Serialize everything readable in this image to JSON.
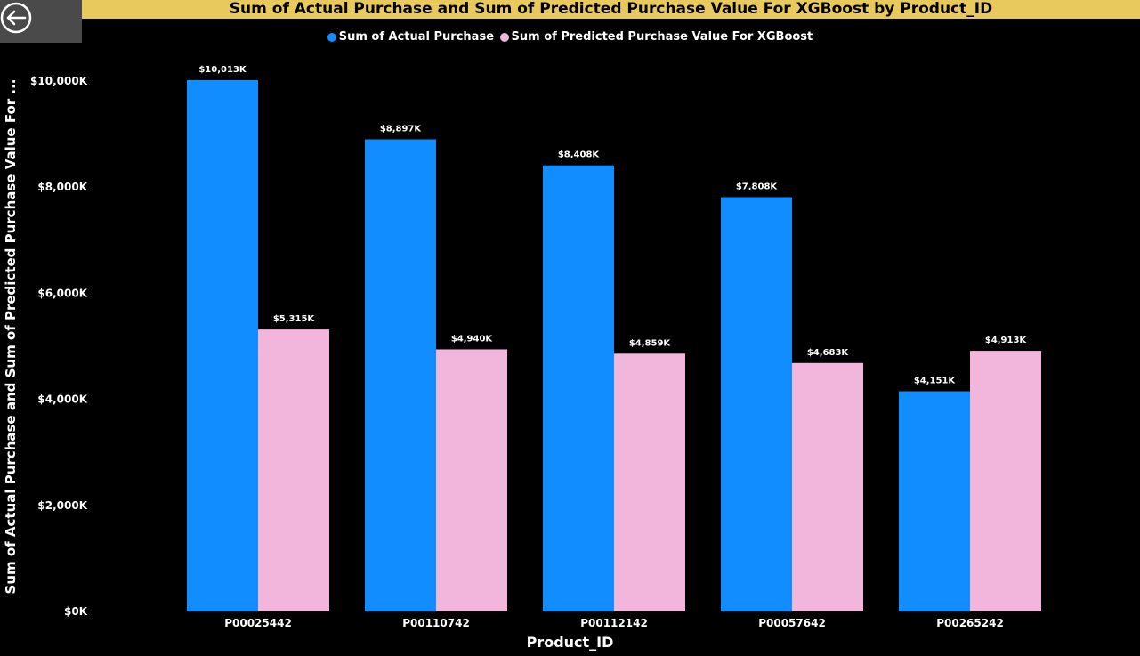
{
  "header": {
    "back_icon": "back-arrow-icon"
  },
  "chart_data": {
    "type": "bar",
    "title": "Sum of Actual Purchase and Sum of Predicted Purchase Value For XGBoost by Product_ID",
    "xlabel": "Product_ID",
    "ylabel": "Sum of Actual Purchase and Sum of Predicted Purchase Value For ...",
    "categories": [
      "P00025442",
      "P00110742",
      "P00112142",
      "P00057642",
      "P00265242"
    ],
    "series": [
      {
        "name": "Sum of Actual Purchase",
        "color": "#118DFF",
        "values": [
          10013,
          8897,
          8408,
          7808,
          4151
        ],
        "labels": [
          "$10,013K",
          "$8,897K",
          "$8,408K",
          "$7,808K",
          "$4,151K"
        ]
      },
      {
        "name": "Sum of Predicted Purchase Value For XGBoost",
        "color": "#F2B6DC",
        "values": [
          5315,
          4940,
          4859,
          4683,
          4913
        ],
        "labels": [
          "$5,315K",
          "$4,940K",
          "$4,859K",
          "$4,683K",
          "$4,913K"
        ]
      }
    ],
    "y_ticks": [
      0,
      2000,
      4000,
      6000,
      8000,
      10000
    ],
    "y_tick_labels": [
      "$0K",
      "$2,000K",
      "$4,000K",
      "$6,000K",
      "$8,000K",
      "$10,000K"
    ],
    "ylim": [
      0,
      10013
    ],
    "legend_position": "top-center",
    "grid": false,
    "colors": {
      "background": "#000000",
      "title_bar": "#E8C95D",
      "text": "#FFFFFF"
    }
  }
}
